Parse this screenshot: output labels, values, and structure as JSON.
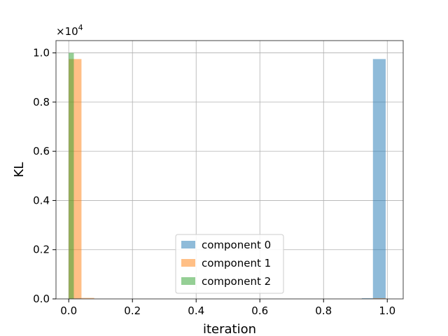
{
  "chart_data": {
    "type": "bar",
    "xlabel": "iteration",
    "ylabel": "KL",
    "xlim": [
      -0.04,
      1.05
    ],
    "ylim": [
      0,
      1.05
    ],
    "y_multiplier": "×10",
    "y_multiplier_exp": "4",
    "xticks": [
      {
        "value": 0.0,
        "label": "0.0"
      },
      {
        "value": 0.2,
        "label": "0.2"
      },
      {
        "value": 0.4,
        "label": "0.4"
      },
      {
        "value": 0.6,
        "label": "0.6"
      },
      {
        "value": 0.8,
        "label": "0.8"
      },
      {
        "value": 1.0,
        "label": "1.0"
      }
    ],
    "yticks": [
      {
        "value": 0.0,
        "label": "0.0"
      },
      {
        "value": 0.2,
        "label": "0.2"
      },
      {
        "value": 0.4,
        "label": "0.4"
      },
      {
        "value": 0.6,
        "label": "0.6"
      },
      {
        "value": 0.8,
        "label": "0.8"
      },
      {
        "value": 1.0,
        "label": "1.0"
      }
    ],
    "grid": true,
    "legend_position": "lower-center",
    "series": [
      {
        "name": "component 0",
        "color": "#1f77b4",
        "bins": [
          {
            "x0": 0.0,
            "x1": 0.04,
            "value": 0.003
          },
          {
            "x0": 0.92,
            "x1": 0.955,
            "value": 0.003
          },
          {
            "x0": 0.955,
            "x1": 0.995,
            "value": 0.975
          }
        ]
      },
      {
        "name": "component 1",
        "color": "#ff7f0e",
        "bins": [
          {
            "x0": 0.0,
            "x1": 0.04,
            "value": 0.975
          },
          {
            "x0": 0.04,
            "x1": 0.08,
            "value": 0.004
          },
          {
            "x0": 0.955,
            "x1": 0.995,
            "value": 0.003
          }
        ]
      },
      {
        "name": "component 2",
        "color": "#2ca02c",
        "bins": [
          {
            "x0": 0.0,
            "x1": 0.016,
            "value": 1.0
          }
        ]
      }
    ]
  }
}
